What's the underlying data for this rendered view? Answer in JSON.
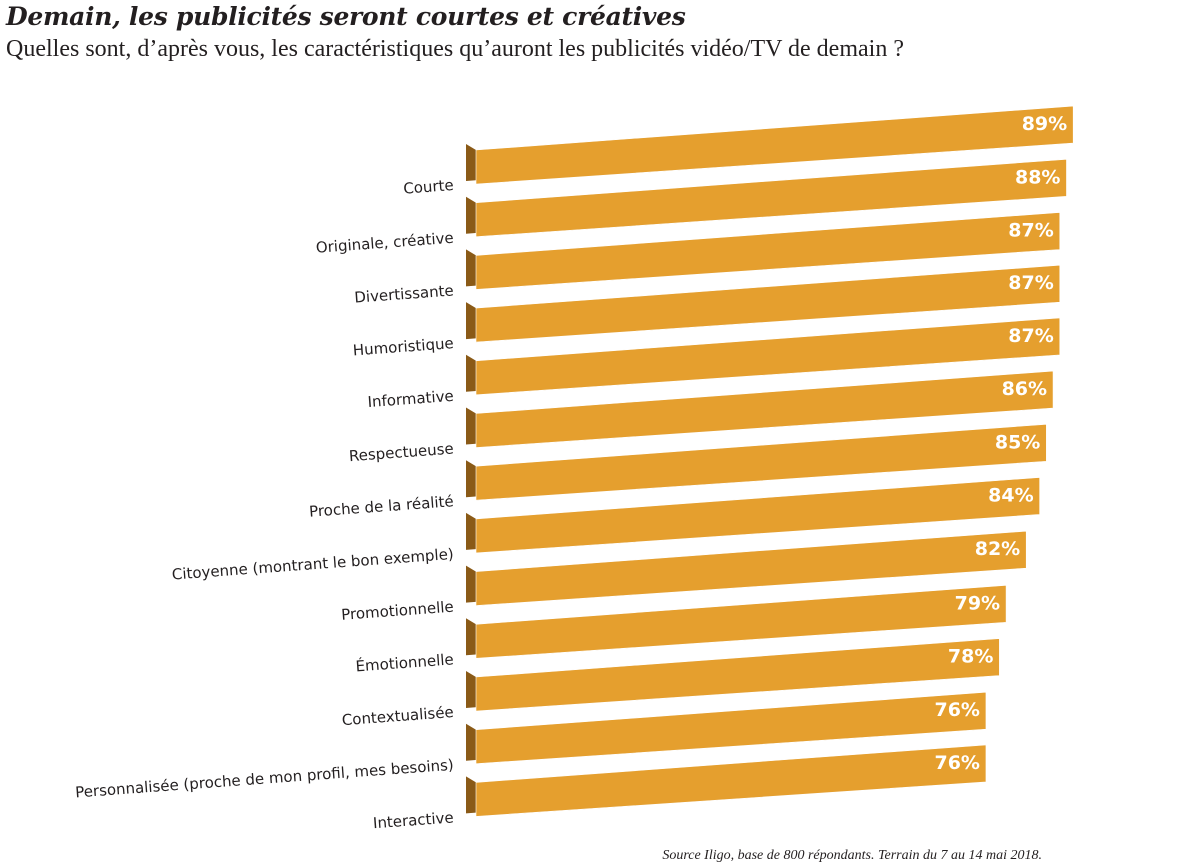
{
  "title": "Demain, les publicités seront courtes et créatives",
  "subtitle": "Quelles sont, d’après vous, les caractéristiques qu’auront les publicités vidéo/TV de demain ?",
  "source": "Source Iligo, base de 800 répondants. Terrain du 7 au 14 mai 2018.",
  "colors": {
    "bar_face": "#e59f2e",
    "bar_side": "#8a5a17",
    "value_text": "#ffffff",
    "label_text": "#231f20"
  },
  "chart_data": {
    "type": "bar",
    "orientation": "horizontal",
    "style": "3d",
    "categories": [
      "Courte",
      "Originale, créative",
      "Divertissante",
      "Humoristique",
      "Informative",
      "Respectueuse",
      "Proche de la réalité",
      "Citoyenne (montrant le bon exemple)",
      "Promotionnelle",
      "Émotionnelle",
      "Contextualisée",
      "Personnalisée (proche de mon profil, mes besoins)",
      "Interactive"
    ],
    "values": [
      89,
      88,
      87,
      87,
      87,
      86,
      85,
      84,
      82,
      79,
      78,
      76,
      76
    ],
    "value_labels": [
      "89%",
      "88%",
      "87%",
      "87%",
      "87%",
      "86%",
      "85%",
      "84%",
      "82%",
      "79%",
      "78%",
      "76%",
      "76%"
    ],
    "unit": "%",
    "xlim": [
      0,
      100
    ],
    "grid": false,
    "legend": "none"
  }
}
